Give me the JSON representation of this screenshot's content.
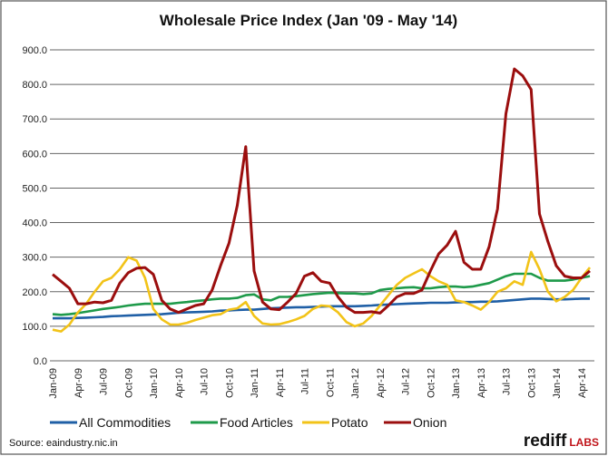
{
  "chart_data": {
    "type": "line",
    "title": "Wholesale Price Index (Jan '09 - May '14)",
    "xlabel": "",
    "ylabel": "",
    "ylim": [
      0,
      900
    ],
    "yticks": [
      "0.0",
      "100.0",
      "200.0",
      "300.0",
      "400.0",
      "500.0",
      "600.0",
      "700.0",
      "800.0",
      "900.0"
    ],
    "x_start": "Jan-09",
    "x_end": "May-14",
    "xtick_labels": [
      "Jan-09",
      "Apr-09",
      "Jul-09",
      "Oct-09",
      "Jan-10",
      "Apr-10",
      "Jul-10",
      "Oct-10",
      "Jan-11",
      "Apr-11",
      "Jul-11",
      "Oct-11",
      "Jan-12",
      "Apr-12",
      "Jul-12",
      "Oct-12",
      "Jan-13",
      "Apr-13",
      "Jul-13",
      "Oct-13",
      "Jan-14",
      "Apr-14"
    ],
    "grid": "horizontal",
    "legend": "bottom",
    "series": [
      {
        "name": "All Commodities",
        "color": "#1f5fa6",
        "values": [
          123,
          123,
          123,
          124,
          125,
          126,
          127,
          129,
          130,
          131,
          132,
          133,
          134,
          135,
          137,
          139,
          140,
          141,
          142,
          143,
          145,
          146,
          147,
          148,
          148,
          150,
          152,
          153,
          154,
          155,
          155,
          156,
          157,
          158,
          158,
          158,
          158,
          159,
          160,
          162,
          163,
          164,
          165,
          166,
          167,
          168,
          168,
          168,
          169,
          170,
          170,
          171,
          171,
          172,
          174,
          176,
          178,
          180,
          180,
          179,
          178,
          178,
          179,
          180,
          180
        ]
      },
      {
        "name": "Food Articles",
        "color": "#1e9a4a",
        "values": [
          135,
          133,
          135,
          138,
          142,
          146,
          150,
          153,
          156,
          160,
          163,
          165,
          165,
          165,
          165,
          168,
          170,
          173,
          175,
          178,
          180,
          180,
          182,
          190,
          192,
          178,
          175,
          185,
          185,
          187,
          190,
          193,
          195,
          197,
          196,
          195,
          195,
          193,
          195,
          205,
          208,
          210,
          212,
          213,
          210,
          210,
          213,
          215,
          215,
          213,
          215,
          220,
          225,
          235,
          245,
          252,
          252,
          252,
          240,
          232,
          232,
          232,
          235,
          240,
          245
        ]
      },
      {
        "name": "Potato",
        "color": "#f2c318",
        "values": [
          90,
          85,
          105,
          140,
          165,
          200,
          230,
          240,
          265,
          300,
          290,
          240,
          150,
          120,
          105,
          105,
          110,
          118,
          125,
          132,
          135,
          148,
          152,
          170,
          130,
          108,
          105,
          106,
          112,
          120,
          130,
          150,
          160,
          158,
          140,
          112,
          100,
          108,
          130,
          160,
          190,
          220,
          240,
          253,
          265,
          245,
          230,
          220,
          175,
          170,
          160,
          148,
          170,
          200,
          210,
          230,
          220,
          315,
          265,
          200,
          172,
          185,
          205,
          240,
          270
        ]
      },
      {
        "name": "Onion",
        "color": "#9b0e0e",
        "values": [
          250,
          230,
          210,
          165,
          165,
          170,
          168,
          175,
          225,
          255,
          268,
          270,
          250,
          175,
          150,
          140,
          150,
          160,
          165,
          205,
          275,
          340,
          450,
          620,
          260,
          170,
          150,
          148,
          170,
          195,
          245,
          255,
          230,
          225,
          185,
          155,
          140,
          140,
          142,
          138,
          160,
          185,
          195,
          195,
          205,
          260,
          310,
          335,
          375,
          285,
          265,
          265,
          330,
          440,
          715,
          845,
          825,
          785,
          425,
          345,
          275,
          245,
          240,
          240,
          260
        ]
      }
    ]
  },
  "source": "Source: eaindustry.nic.in",
  "brand": {
    "main": "rediff",
    "sub": "LABS"
  }
}
